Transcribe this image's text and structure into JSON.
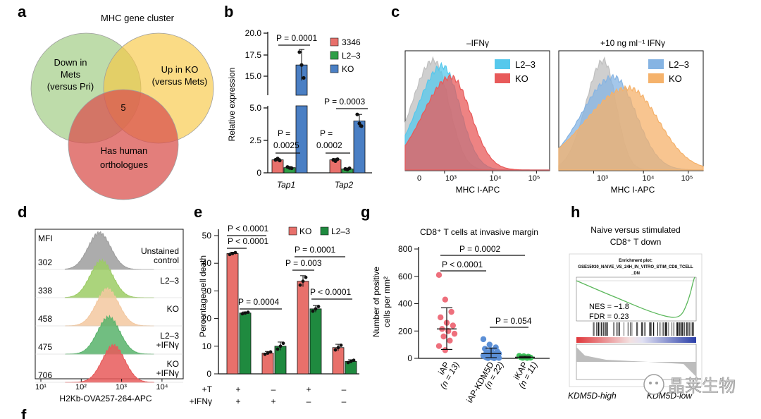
{
  "panels": {
    "a": "a",
    "b": "b",
    "c": "c",
    "d": "d",
    "e": "e",
    "g": "g",
    "h": "h",
    "f": "f"
  },
  "venn": {
    "title": "MHC gene cluster",
    "circle1": [
      "Down in",
      "Mets",
      "(versus Pri)"
    ],
    "circle2": [
      "Up in KO",
      "(versus Mets)"
    ],
    "circle3": [
      "Has human",
      "orthologues"
    ],
    "center": "5",
    "colors": {
      "c1": "#a8d08d",
      "c2": "#f7c744",
      "c3": "#d9534f"
    }
  },
  "chart_data": [
    {
      "panel": "b",
      "type": "bar",
      "ylabel": "Relative expression",
      "categories": [
        "Tap1",
        "Tap2"
      ],
      "series": [
        {
          "name": "3346",
          "color": "#e8706b",
          "values": [
            1.0,
            1.0
          ],
          "errors": [
            0.1,
            0.1
          ],
          "points": [
            [
              1.0,
              1.1,
              0.95
            ],
            [
              1.0,
              0.9,
              1.05
            ]
          ]
        },
        {
          "name": "L2–3",
          "color": "#2e9e47",
          "values": [
            0.4,
            0.3
          ],
          "errors": [
            0.08,
            0.07
          ],
          "points": [
            [
              0.45,
              0.38,
              0.35
            ],
            [
              0.3,
              0.25,
              0.35
            ]
          ]
        },
        {
          "name": "KO",
          "color": "#4a7fc4",
          "values": [
            16.3,
            4.0
          ],
          "errors": [
            1.8,
            0.5
          ],
          "points": [
            [
              17.8,
              16.3,
              14.8
            ],
            [
              4.5,
              3.8,
              3.6
            ]
          ]
        }
      ],
      "y_ticks_upper": [
        "20.0",
        "17.5",
        "15.0"
      ],
      "y_ticks_lower": [
        "5.0",
        "2.5",
        "0"
      ],
      "stats": [
        {
          "label": "P = 0.0001"
        },
        {
          "label": "P = 0.0003"
        },
        {
          "label1": "P =",
          "label2": "0.0025"
        },
        {
          "label1": "P =",
          "label2": "0.0002"
        }
      ]
    },
    {
      "panel": "c",
      "type": "area",
      "charts": [
        {
          "title": "–IFNγ",
          "xlabel": "MHC I-APC",
          "xticks": [
            "0",
            "10³",
            "10⁴",
            "10⁵"
          ],
          "legend": [
            {
              "name": "L2–3",
              "color": "#56c8ec"
            },
            {
              "name": "KO",
              "color": "#e85a5a"
            }
          ],
          "distributions": [
            {
              "color": "#bfbfbf",
              "peak_log": 2.55,
              "width": 0.35,
              "height": 1.0
            },
            {
              "color": "#56c8ec",
              "peak_log": 2.75,
              "width": 0.4,
              "height": 0.95
            },
            {
              "color": "#e85a5a",
              "peak_log": 2.95,
              "width": 0.45,
              "height": 0.85
            }
          ]
        },
        {
          "title": "+10 ng ml⁻¹ IFNγ",
          "xlabel": "MHC I-APC",
          "xticks": [
            "10³",
            "10⁴",
            "10⁵"
          ],
          "legend": [
            {
              "name": "L2–3",
              "color": "#86b4e3"
            },
            {
              "name": "KO",
              "color": "#f5b26b"
            }
          ],
          "distributions": [
            {
              "color": "#bfbfbf",
              "peak_log": 3.2,
              "width": 0.25,
              "height": 1.0
            },
            {
              "color": "#86b4e3",
              "peak_log": 3.4,
              "width": 0.45,
              "height": 0.85
            },
            {
              "color": "#f5b26b",
              "peak_log": 3.7,
              "width": 0.6,
              "height": 0.75
            }
          ]
        }
      ]
    },
    {
      "panel": "d",
      "type": "area",
      "header": "MFI",
      "xlabel": "H2Kb-OVA257-264-APC",
      "xticks": [
        "10¹",
        "10²",
        "10³",
        "10⁴"
      ],
      "rows": [
        {
          "mfi": "302",
          "label": [
            "Unstained",
            "control"
          ],
          "color": "#9e9e9e",
          "peak_log": 2.45
        },
        {
          "mfi": "338",
          "label": [
            "L2–3"
          ],
          "color": "#9ccc65",
          "peak_log": 2.5
        },
        {
          "mfi": "458",
          "label": [
            "KO"
          ],
          "color": "#f3c8a0",
          "peak_log": 2.65
        },
        {
          "mfi": "475",
          "label": [
            "L2–3",
            "+IFNγ"
          ],
          "color": "#58b36b",
          "peak_log": 2.68
        },
        {
          "mfi": "706",
          "label": [
            "KO",
            "+IFNγ"
          ],
          "color": "#e85a5a",
          "peak_log": 2.8
        }
      ]
    },
    {
      "panel": "e",
      "type": "bar",
      "ylabel": "Percentage cell death",
      "ylim": [
        0,
        50
      ],
      "yticks": [
        0,
        10,
        20,
        30,
        40,
        50
      ],
      "groups": [
        {
          "t": "+",
          "ifn": "+"
        },
        {
          "t": "–",
          "ifn": "+"
        },
        {
          "t": "+",
          "ifn": "–"
        },
        {
          "t": "–",
          "ifn": "–"
        }
      ],
      "row_labels": [
        "+T",
        "+IFNγ"
      ],
      "series": [
        {
          "name": "KO",
          "color": "#e8706b",
          "values": [
            43.5,
            7.5,
            33.5,
            9.5
          ],
          "errors": [
            0.5,
            0.6,
            2.0,
            1.2
          ]
        },
        {
          "name": "L2–3",
          "color": "#1f8a3f",
          "values": [
            22.0,
            10.0,
            23.5,
            4.5
          ],
          "errors": [
            0.4,
            1.5,
            1.2,
            0.6
          ]
        }
      ],
      "stats": [
        "P < 0.0001",
        "P < 0.0001",
        "P = 0.0004",
        "P = 0.0001",
        "P = 0.003",
        "P < 0.0001"
      ]
    },
    {
      "panel": "g",
      "type": "scatter",
      "title": "CD8⁺ T cells at invasive margin",
      "ylabel": [
        "Number of positive",
        "cells per mm²"
      ],
      "ylim": [
        0,
        800
      ],
      "yticks": [
        0,
        200,
        400,
        600,
        800
      ],
      "groups": [
        {
          "name": "iAP",
          "n": "(n = 13)",
          "color": "#ee6f7c",
          "mean": 215,
          "sd_low": 65,
          "sd_high": 370,
          "points": [
            610,
            430,
            340,
            300,
            260,
            240,
            215,
            200,
            180,
            160,
            130,
            90,
            60
          ]
        },
        {
          "name": "iAP-KDM5D",
          "n": "(n = 22)",
          "color": "#5b8fd6",
          "mean": 35,
          "sd_low": 5,
          "sd_high": 75,
          "points": [
            140,
            100,
            80,
            70,
            60,
            50,
            45,
            40,
            35,
            30,
            25,
            20,
            18,
            15,
            12,
            10,
            8,
            6,
            5,
            3,
            2,
            1
          ]
        },
        {
          "name": "iKAP",
          "n": "(n = 11)",
          "color": "#3ec15a",
          "mean": 8,
          "sd_low": 2,
          "sd_high": 15,
          "points": [
            18,
            15,
            12,
            10,
            9,
            8,
            7,
            6,
            5,
            4,
            3
          ]
        }
      ],
      "stats": [
        "P = 0.0002",
        "P < 0.0001",
        "P = 0.054"
      ]
    },
    {
      "panel": "h",
      "type": "line",
      "title": [
        "Naive versus stimulated",
        "CD8⁺ T down"
      ],
      "plot_title": [
        "Enrichment plot:",
        "GSE15930_NAIVE_VS_24H_IN_VITRO_STIM_CD8_TCELL",
        "_DN"
      ],
      "nes": "NES = −1.8",
      "fdr": "FDR = 0.23",
      "xlabel_left": "KDM5D-high",
      "xlabel_right": "KDM5D-low",
      "line_color": "#5cb85c"
    }
  ],
  "watermark": "晶莱生物"
}
